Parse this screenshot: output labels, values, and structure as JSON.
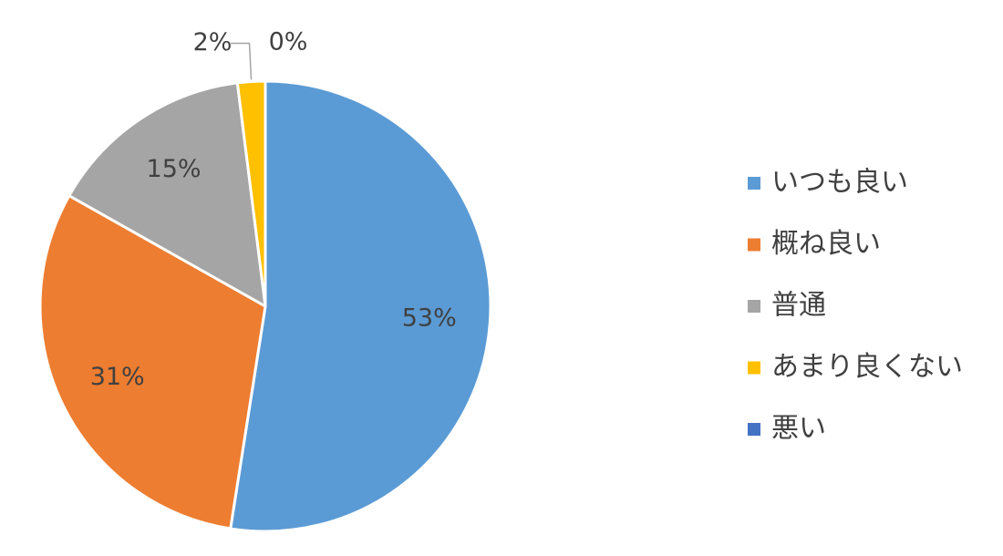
{
  "chart_data": {
    "type": "pie",
    "categories": [
      "いつも良い",
      "概ね良い",
      "普通",
      "あまり良くない",
      "悪い"
    ],
    "values": [
      53,
      31,
      15,
      2,
      0
    ],
    "value_labels": [
      "53%",
      "31%",
      "15%",
      "2%",
      "0%"
    ],
    "colors": [
      "#5b9bd5",
      "#ed7d31",
      "#a5a5a5",
      "#ffc000",
      "#4472c4"
    ],
    "legend": "right"
  }
}
